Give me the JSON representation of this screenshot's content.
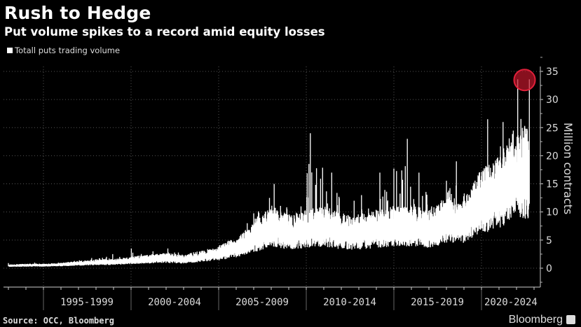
{
  "chart_data": {
    "type": "line",
    "title": "Rush to Hedge",
    "subtitle": "Put volume spikes to a record amid equity losses",
    "legend": [
      "Totall puts trading volume"
    ],
    "legend_placement": "top-left",
    "ylabel": "Million contracts",
    "xlabel": "",
    "ylim": [
      -3.5,
      37
    ],
    "yticks": [
      0,
      5,
      10,
      15,
      20,
      25,
      30,
      35
    ],
    "xlim": [
      1992.7,
      2023.5
    ],
    "x_period_labels": [
      "1995-1999",
      "2000-2004",
      "2005-2009",
      "2010-2014",
      "2015-2019",
      "2020-2024"
    ],
    "x_period_starts": [
      1995,
      2000,
      2005,
      2010,
      2015,
      2020
    ],
    "series": [
      {
        "name": "Totall puts trading volume",
        "color": "#ffffff",
        "years": [
          1993,
          1994,
          1995,
          1996,
          1997,
          1998,
          1999,
          2000,
          2001,
          2002,
          2003,
          2004,
          2005,
          2006,
          2007,
          2008,
          2009,
          2010,
          2011,
          2012,
          2013,
          2014,
          2015,
          2016,
          2017,
          2018,
          2019,
          2020,
          2021,
          2022
        ],
        "typical_daily_volume": [
          0.4,
          0.5,
          0.5,
          0.6,
          0.8,
          1.0,
          1.0,
          1.3,
          1.5,
          1.7,
          1.5,
          2.0,
          2.5,
          3.5,
          5.0,
          7.0,
          6.0,
          6.5,
          7.0,
          6.0,
          6.0,
          6.5,
          7.0,
          7.0,
          6.5,
          8.0,
          8.0,
          11.0,
          12.5,
          16.0
        ],
        "peak_daily_volume": [
          0.9,
          1.0,
          1.0,
          1.3,
          1.8,
          2.5,
          2.0,
          3.5,
          3.0,
          3.5,
          2.5,
          3.0,
          5.0,
          8.0,
          12.5,
          15.0,
          11.0,
          24.0,
          17.0,
          12.0,
          13.0,
          17.0,
          23.0,
          17.0,
          11.0,
          19.0,
          17.0,
          26.5,
          26.0,
          33.6
        ]
      }
    ],
    "annotations": [
      {
        "type": "circle-highlight",
        "x": 2022.7,
        "y": 33.6,
        "color": "#c0172b"
      }
    ],
    "source": "Source: OCC, Bloomberg",
    "brand": "Bloomberg"
  }
}
